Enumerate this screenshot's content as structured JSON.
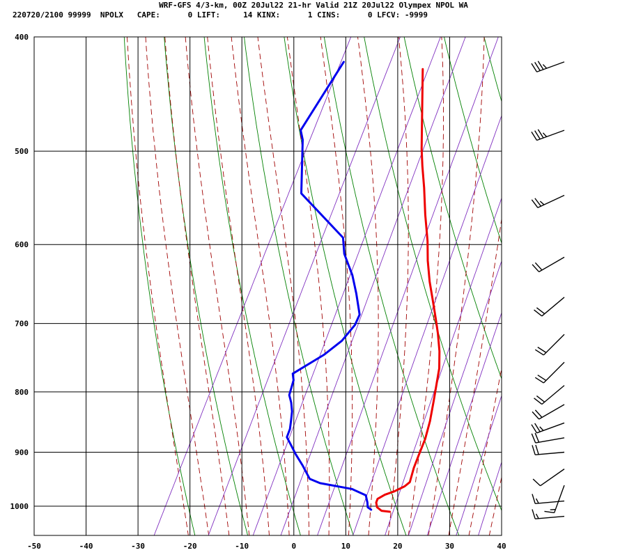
{
  "header": {
    "line1": "WRF-GFS 4/3-km, 00Z 20Jul22 21-hr Valid 21Z 20Jul22 Olympex NPOL WA",
    "line2": "220720/2100 99999  NPOLX   CAPE:      0 LIFT:     14 KINX:      1 CINS:      0 LFCV: -9999"
  },
  "chart_data": {
    "type": "line",
    "title": "WRF-GFS 4/3-km, 00Z 20Jul22 21-hr Valid 21Z 20Jul22 Olympex NPOL WA",
    "xlabel": "",
    "ylabel": "",
    "x_ticks": [
      "-50",
      "-40",
      "-30",
      "-20",
      "-10",
      "0",
      "10",
      "20",
      "30",
      "40"
    ],
    "y_ticks": [
      "400",
      "500",
      "600",
      "700",
      "800",
      "900",
      "1000"
    ],
    "xlim": [
      -50,
      40
    ],
    "ylim": [
      1040,
      400
    ],
    "y_scale": "log",
    "grid": true,
    "colors": {
      "temperature": "#ee0000",
      "dewpoint": "#0000ee",
      "dry_adiabat": "#008000",
      "moist_adiabat": "#a00000",
      "mixing_ratio": "#8030c0"
    },
    "series": [
      {
        "key": "temperature",
        "points": [
          [
            16.2,
            1011
          ],
          [
            14.5,
            1009
          ],
          [
            13.3,
            1002
          ],
          [
            12.7,
            993
          ],
          [
            12.6,
            986
          ],
          [
            13.6,
            978
          ],
          [
            15.0,
            972
          ],
          [
            16.6,
            962
          ],
          [
            17.2,
            954
          ],
          [
            16.6,
            928
          ],
          [
            16.3,
            904
          ],
          [
            16.0,
            877
          ],
          [
            15.2,
            847
          ],
          [
            14.0,
            815
          ],
          [
            12.9,
            788
          ],
          [
            11.9,
            764
          ],
          [
            10.3,
            739
          ],
          [
            8.3,
            714
          ],
          [
            6.4,
            693
          ],
          [
            4.2,
            670
          ],
          [
            1.7,
            645
          ],
          [
            -0.7,
            619
          ],
          [
            -2.6,
            596
          ],
          [
            -5.6,
            566
          ],
          [
            -8.4,
            537
          ],
          [
            -10.8,
            515
          ],
          [
            -12.6,
            498
          ],
          [
            -20.1,
            426
          ]
        ]
      },
      {
        "key": "dewpoint",
        "points": [
          [
            12.4,
            1007
          ],
          [
            11.5,
            1002
          ],
          [
            11.0,
            993
          ],
          [
            10.0,
            979
          ],
          [
            6.7,
            967
          ],
          [
            0,
            956
          ],
          [
            -2.4,
            948
          ],
          [
            -5.0,
            924
          ],
          [
            -7.4,
            904
          ],
          [
            -9.3,
            887
          ],
          [
            -10.8,
            874
          ],
          [
            -11.0,
            860
          ],
          [
            -11.6,
            846
          ],
          [
            -12.3,
            831
          ],
          [
            -13.3,
            817
          ],
          [
            -14.4,
            805
          ],
          [
            -15.0,
            782
          ],
          [
            -15.8,
            772
          ],
          [
            -11.6,
            744
          ],
          [
            -9.5,
            724
          ],
          [
            -8.5,
            702
          ],
          [
            -8.6,
            688
          ],
          [
            -11.3,
            660
          ],
          [
            -13.8,
            637
          ],
          [
            -17.4,
            611
          ],
          [
            -19.2,
            592
          ],
          [
            -31.5,
            543
          ],
          [
            -36.4,
            489
          ],
          [
            -37.7,
            480
          ],
          [
            -36.0,
            420
          ]
        ]
      }
    ],
    "wind_barbs": [
      {
        "pressure": 420,
        "dir_deg": 250,
        "speed_kt": 35
      },
      {
        "pressure": 480,
        "dir_deg": 250,
        "speed_kt": 35
      },
      {
        "pressure": 545,
        "dir_deg": 245,
        "speed_kt": 25
      },
      {
        "pressure": 615,
        "dir_deg": 240,
        "speed_kt": 20
      },
      {
        "pressure": 665,
        "dir_deg": 230,
        "speed_kt": 20
      },
      {
        "pressure": 715,
        "dir_deg": 225,
        "speed_kt": 20
      },
      {
        "pressure": 755,
        "dir_deg": 225,
        "speed_kt": 20
      },
      {
        "pressure": 790,
        "dir_deg": 230,
        "speed_kt": 20
      },
      {
        "pressure": 820,
        "dir_deg": 240,
        "speed_kt": 20
      },
      {
        "pressure": 850,
        "dir_deg": 250,
        "speed_kt": 25
      },
      {
        "pressure": 875,
        "dir_deg": 260,
        "speed_kt": 20
      },
      {
        "pressure": 900,
        "dir_deg": 265,
        "speed_kt": 20
      },
      {
        "pressure": 930,
        "dir_deg": 235,
        "speed_kt": 10
      },
      {
        "pressure": 960,
        "dir_deg": 200,
        "speed_kt": 15
      },
      {
        "pressure": 990,
        "dir_deg": 265,
        "speed_kt": 15
      },
      {
        "pressure": 1020,
        "dir_deg": 265,
        "speed_kt": 15
      }
    ]
  }
}
